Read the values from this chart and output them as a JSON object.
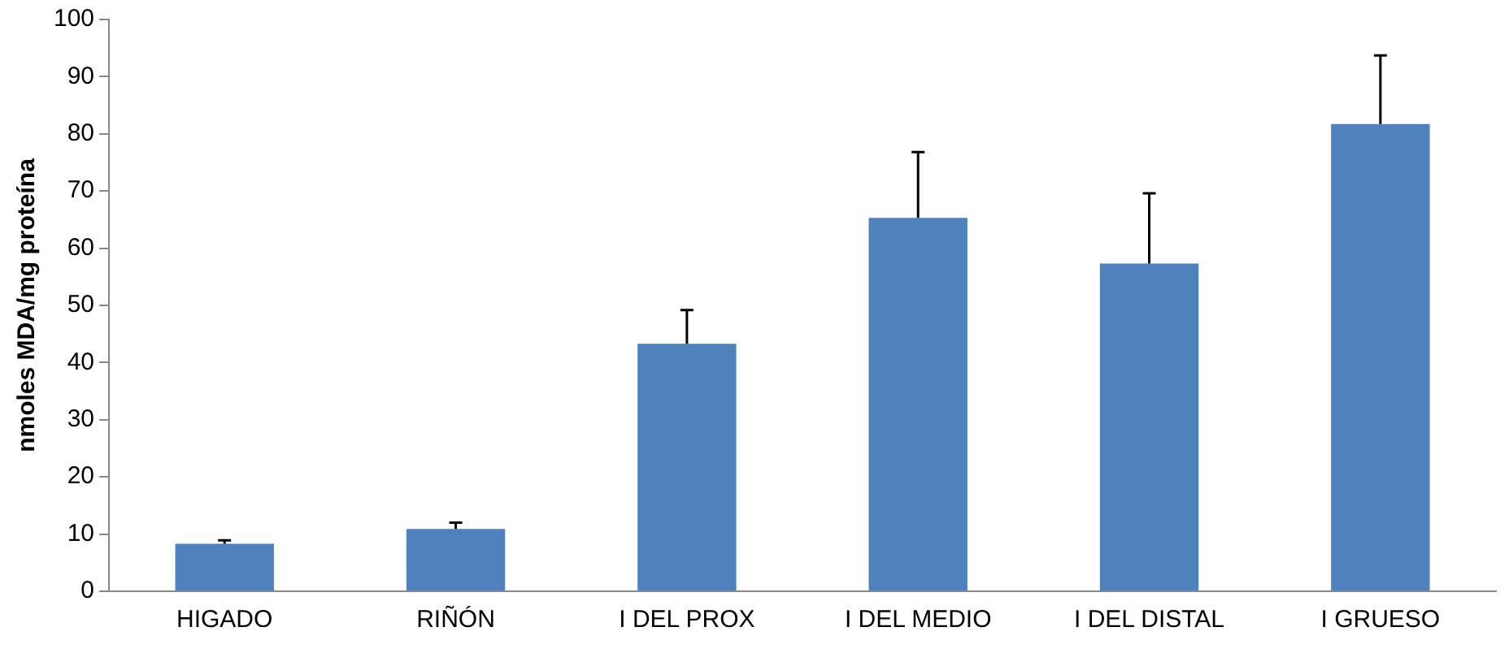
{
  "chart_data": {
    "type": "bar",
    "ylabel": "nmoles MDA/mg proteína",
    "categories": [
      "HIGADO",
      "RIÑÓN",
      "I DEL PROX",
      "I DEL MEDIO",
      "I DEL DISTAL",
      "I GRUESO"
    ],
    "values": [
      8.3,
      10.9,
      43.3,
      65.3,
      57.3,
      81.7
    ],
    "errors": [
      [
        8.3,
        8.9
      ],
      [
        10.9,
        12
      ],
      [
        43.3,
        49.2
      ],
      [
        65.3,
        76.8
      ],
      [
        57.3,
        69.6
      ],
      [
        81.7,
        93.7
      ]
    ],
    "color": "#4f81bd",
    "ylim": [
      0,
      100
    ],
    "yticks": [
      0,
      10,
      20,
      30,
      40,
      50,
      60,
      70,
      80,
      90,
      100
    ],
    "grid": false,
    "legend": false
  }
}
